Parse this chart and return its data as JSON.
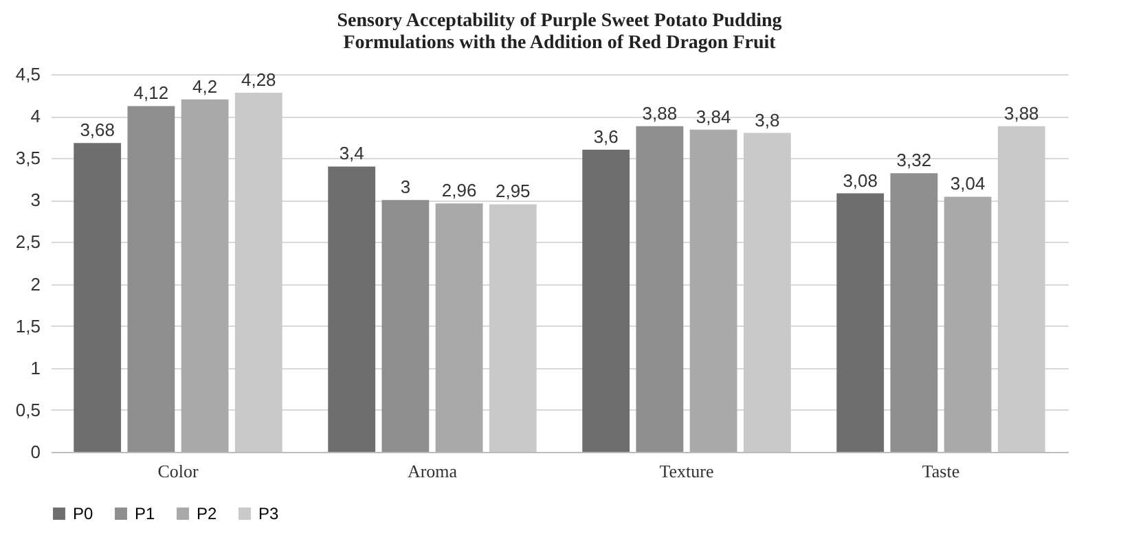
{
  "chart_data": {
    "type": "bar",
    "title": "Sensory Acceptability of Purple Sweet Potato Pudding Formulations with the Addition of Red Dragon Fruit",
    "categories": [
      "Color",
      "Aroma",
      "Texture",
      "Taste"
    ],
    "series": [
      {
        "name": "P0",
        "color": "#6e6e6e",
        "values": [
          3.68,
          3.4,
          3.6,
          3.08
        ],
        "value_labels": [
          "3,68",
          "3,4",
          "3,6",
          "3,08"
        ]
      },
      {
        "name": "P1",
        "color": "#8e8e8e",
        "values": [
          4.12,
          3,
          3.88,
          3.32
        ],
        "value_labels": [
          "4,12",
          "3",
          "3,88",
          "3,32"
        ]
      },
      {
        "name": "P2",
        "color": "#a9a9a9",
        "values": [
          4.2,
          2.96,
          3.84,
          3.04
        ],
        "value_labels": [
          "4,2",
          "2,96",
          "3,84",
          "3,04"
        ]
      },
      {
        "name": "P3",
        "color": "#c9c9c9",
        "values": [
          4.28,
          2.95,
          3.8,
          3.88
        ],
        "value_labels": [
          "4,28",
          "2,95",
          "3,8",
          "3,88"
        ]
      }
    ],
    "ylim": [
      0,
      4.5
    ],
    "yticks": [
      0,
      {
        "value": 0.5,
        "label": "0,5"
      },
      1,
      {
        "value": 1.5,
        "label": "1,5"
      },
      2,
      {
        "value": 2.5,
        "label": "2,5"
      },
      3,
      {
        "value": 3.5,
        "label": "3,5"
      },
      4,
      {
        "value": 4.5,
        "label": "4,5"
      }
    ],
    "grid": "y",
    "legend": "bottom"
  }
}
